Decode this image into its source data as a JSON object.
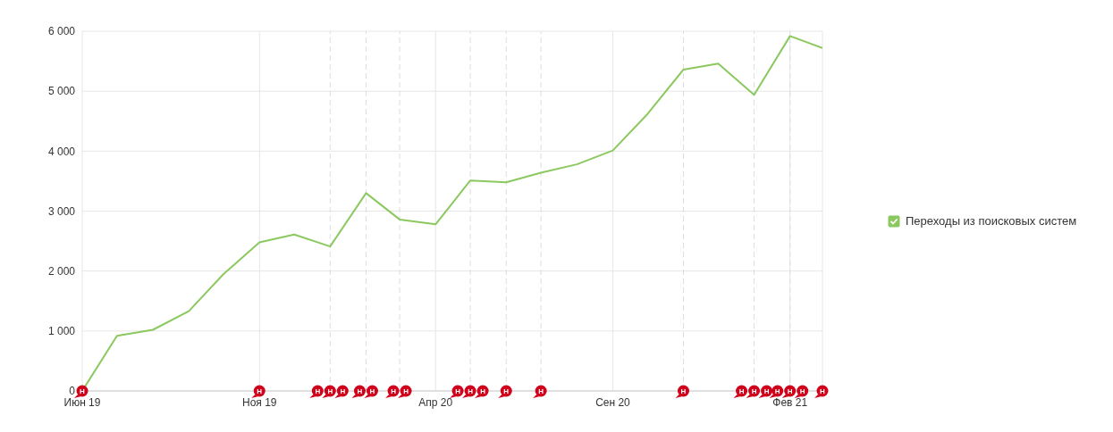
{
  "chart_data": {
    "type": "line",
    "x": [
      "2019-06",
      "2019-07",
      "2019-08",
      "2019-09",
      "2019-10",
      "2019-11",
      "2019-12",
      "2020-01",
      "2020-02",
      "2020-03",
      "2020-04",
      "2020-05",
      "2020-06",
      "2020-07",
      "2020-08",
      "2020-09",
      "2020-10",
      "2020-11",
      "2020-12",
      "2021-01",
      "2021-02",
      "2021-03"
    ],
    "series": [
      {
        "name": "Переходы из поисковых систем",
        "color": "#8cc860",
        "values": [
          0,
          920,
          1020,
          1330,
          1950,
          2480,
          2610,
          2410,
          3300,
          2860,
          2780,
          3510,
          3480,
          3640,
          3780,
          4010,
          4620,
          5360,
          5460,
          4940,
          5920,
          5720
        ]
      }
    ],
    "xlim": [
      "2019-06",
      "2021-03"
    ],
    "xticks": [
      {
        "value": "2019-06",
        "label": "Июн 19"
      },
      {
        "value": "2019-11",
        "label": "Ноя 19"
      },
      {
        "value": "2020-04",
        "label": "Апр 20"
      },
      {
        "value": "2020-09",
        "label": "Сен 20"
      },
      {
        "value": "2021-02",
        "label": "Фев 21"
      }
    ],
    "ylim": [
      0,
      6000
    ],
    "yticks": [
      {
        "value": 0,
        "label": "0"
      },
      {
        "value": 1000,
        "label": "1 000"
      },
      {
        "value": 2000,
        "label": "2 000"
      },
      {
        "value": 3000,
        "label": "3 000"
      },
      {
        "value": 4000,
        "label": "4 000"
      },
      {
        "value": 5000,
        "label": "5 000"
      },
      {
        "value": 6000,
        "label": "6 000"
      }
    ],
    "grid": true,
    "legend": "right",
    "marker": "none",
    "line_style": "solid",
    "ref_lines": [
      {
        "axis": "x",
        "value": "2020-01",
        "line_style": "dashed"
      },
      {
        "axis": "x",
        "value": "2020-02",
        "line_style": "dashed"
      },
      {
        "axis": "x",
        "value": "2020-03",
        "line_style": "dashed"
      },
      {
        "axis": "x",
        "value": "2020-05",
        "line_style": "dashed"
      },
      {
        "axis": "x",
        "value": "2020-06",
        "line_style": "dashed"
      },
      {
        "axis": "x",
        "value": "2020-07",
        "line_style": "dashed"
      },
      {
        "axis": "x",
        "value": "2020-11",
        "line_style": "dashed"
      },
      {
        "axis": "x",
        "value": "2021-01",
        "line_style": "dashed"
      },
      {
        "axis": "x",
        "value": "2021-02",
        "line_style": "dashed"
      }
    ],
    "annotations": [
      {
        "text": "Н",
        "x": "2019-06",
        "y": 0
      },
      {
        "text": "Н",
        "x": "2019-11",
        "y": 0
      },
      {
        "text": "Н",
        "x": "2020-01",
        "y": 0
      },
      {
        "text": "Н",
        "x": "2020-01",
        "y": 0
      },
      {
        "text": "Н",
        "x": "2020-01",
        "y": 0
      },
      {
        "text": "Н",
        "x": "2020-02",
        "y": 0
      },
      {
        "text": "Н",
        "x": "2020-02",
        "y": 0
      },
      {
        "text": "Н",
        "x": "2020-03",
        "y": 0
      },
      {
        "text": "Н",
        "x": "2020-03",
        "y": 0
      },
      {
        "text": "Н",
        "x": "2020-05",
        "y": 0
      },
      {
        "text": "Н",
        "x": "2020-05",
        "y": 0
      },
      {
        "text": "Н",
        "x": "2020-05",
        "y": 0
      },
      {
        "text": "Н",
        "x": "2020-06",
        "y": 0
      },
      {
        "text": "Н",
        "x": "2020-07",
        "y": 0
      },
      {
        "text": "Н",
        "x": "2020-11",
        "y": 0
      },
      {
        "text": "Н",
        "x": "2021-01",
        "y": 0
      },
      {
        "text": "Н",
        "x": "2021-01",
        "y": 0
      },
      {
        "text": "Н",
        "x": "2021-01",
        "y": 0
      },
      {
        "text": "Н",
        "x": "2021-02",
        "y": 0
      },
      {
        "text": "Н",
        "x": "2021-02",
        "y": 0
      },
      {
        "text": "Н",
        "x": "2021-02",
        "y": 0
      },
      {
        "text": "Н",
        "x": "2021-03",
        "y": 0
      }
    ]
  }
}
